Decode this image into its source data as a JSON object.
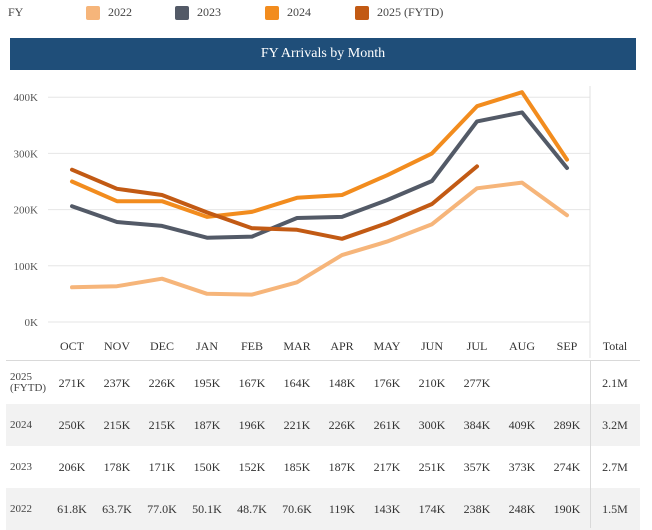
{
  "legend": {
    "label": "FY",
    "items": [
      {
        "name": "2022",
        "color": "#f6b57a"
      },
      {
        "name": "2023",
        "color": "#535a67"
      },
      {
        "name": "2024",
        "color": "#f28c1e"
      },
      {
        "name": "2025 (FYTD)",
        "color": "#c25a14"
      }
    ]
  },
  "title": "FY Arrivals by Month",
  "table": {
    "total_header": "Total",
    "rows": [
      {
        "label_lines": [
          "2025",
          "(FYTD)"
        ],
        "cells": [
          "271K",
          "237K",
          "226K",
          "195K",
          "167K",
          "164K",
          "148K",
          "176K",
          "210K",
          "277K",
          "",
          ""
        ],
        "total": "2.1M"
      },
      {
        "label_lines": [
          "2024"
        ],
        "cells": [
          "250K",
          "215K",
          "215K",
          "187K",
          "196K",
          "221K",
          "226K",
          "261K",
          "300K",
          "384K",
          "409K",
          "289K"
        ],
        "total": "3.2M"
      },
      {
        "label_lines": [
          "2023"
        ],
        "cells": [
          "206K",
          "178K",
          "171K",
          "150K",
          "152K",
          "185K",
          "187K",
          "217K",
          "251K",
          "357K",
          "373K",
          "274K"
        ],
        "total": "2.7M"
      },
      {
        "label_lines": [
          "2022"
        ],
        "cells": [
          "61.8K",
          "63.7K",
          "77.0K",
          "50.1K",
          "48.7K",
          "70.6K",
          "119K",
          "143K",
          "174K",
          "238K",
          "248K",
          "190K"
        ],
        "total": "1.5M"
      }
    ]
  },
  "chart_data": {
    "type": "line",
    "title": "FY Arrivals by Month",
    "categories": [
      "OCT",
      "NOV",
      "DEC",
      "JAN",
      "FEB",
      "MAR",
      "APR",
      "MAY",
      "JUN",
      "JUL",
      "AUG",
      "SEP"
    ],
    "ylim": [
      0,
      420000
    ],
    "yticks": [
      0,
      100000,
      200000,
      300000,
      400000
    ],
    "ytick_labels": [
      "0K",
      "100K",
      "200K",
      "300K",
      "400K"
    ],
    "grid": true,
    "legend_position": "top",
    "series": [
      {
        "name": "2022",
        "color": "#f6b57a",
        "values": [
          61800,
          63700,
          77000,
          50100,
          48700,
          70600,
          119000,
          143000,
          174000,
          238000,
          248000,
          190000
        ]
      },
      {
        "name": "2023",
        "color": "#535a67",
        "values": [
          206000,
          178000,
          171000,
          150000,
          152000,
          185000,
          187000,
          217000,
          251000,
          357000,
          373000,
          274000
        ]
      },
      {
        "name": "2024",
        "color": "#f28c1e",
        "values": [
          250000,
          215000,
          215000,
          187000,
          196000,
          221000,
          226000,
          261000,
          300000,
          384000,
          409000,
          289000
        ]
      },
      {
        "name": "2025 (FYTD)",
        "color": "#c25a14",
        "values": [
          271000,
          237000,
          226000,
          195000,
          167000,
          164000,
          148000,
          176000,
          210000,
          277000,
          null,
          null
        ]
      }
    ]
  }
}
